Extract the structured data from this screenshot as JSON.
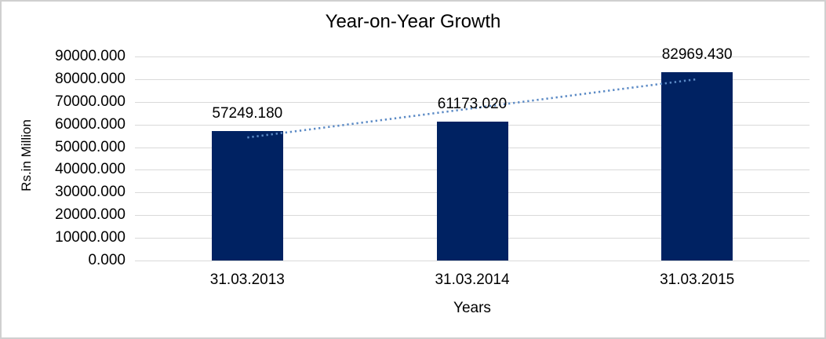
{
  "chart_data": {
    "type": "bar",
    "title": "Year-on-Year Growth",
    "xlabel": "Years",
    "ylabel": "Rs.in Million",
    "categories": [
      "31.03.2013",
      "31.03.2014",
      "31.03.2015"
    ],
    "values": [
      57249.18,
      61173.02,
      82969.43
    ],
    "data_labels": [
      "57249.180",
      "61173.020",
      "82969.430"
    ],
    "ylim": [
      0,
      90000
    ],
    "y_ticks": [
      {
        "value": 0,
        "label": "0.000"
      },
      {
        "value": 10000,
        "label": "10000.000"
      },
      {
        "value": 20000,
        "label": "20000.000"
      },
      {
        "value": 30000,
        "label": "30000.000"
      },
      {
        "value": 40000,
        "label": "40000.000"
      },
      {
        "value": 50000,
        "label": "50000.000"
      },
      {
        "value": 60000,
        "label": "60000.000"
      },
      {
        "value": 70000,
        "label": "70000.000"
      },
      {
        "value": 80000,
        "label": "80000.000"
      },
      {
        "value": 90000,
        "label": "90000.000"
      }
    ],
    "grid": "horizontal",
    "legend": "none",
    "trendline": {
      "type": "linear",
      "style": "dotted",
      "color": "#5b8ac5"
    },
    "colors": {
      "bar": "#002262",
      "gridline": "#d9d9d9",
      "text": "#000000",
      "frame_border": "#d0d0d0",
      "background": "#ffffff"
    }
  }
}
